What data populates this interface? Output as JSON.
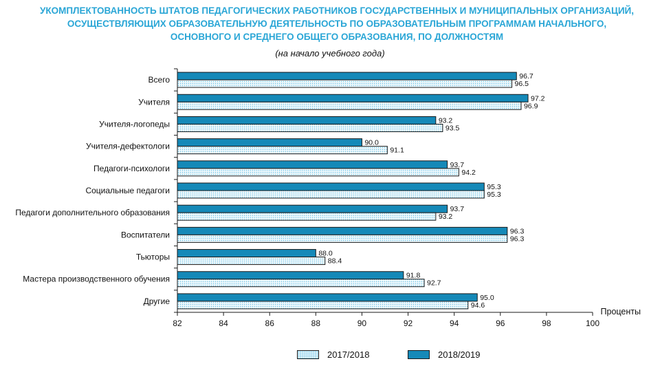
{
  "title_lines": [
    "УКОМПЛЕКТОВАННОСТЬ ШТАТОВ ПЕДАГОГИЧЕСКИХ РАБОТНИКОВ ГОСУДАРСТВЕННЫХ И МУНИЦИПАЛЬНЫХ ОРГАНИЗАЦИЙ,",
    "ОСУЩЕСТВЛЯЮЩИХ ОБРАЗОВАТЕЛЬНУЮ ДЕЯТЕЛЬНОСТЬ ПО ОБРАЗОВАТЕЛЬНЫМ ПРОГРАММАМ НАЧАЛЬНОГО,",
    "ОСНОВНОГО И СРЕДНЕГО ОБЩЕГО ОБРАЗОВАНИЯ, ПО ДОЛЖНОСТЯМ"
  ],
  "subtitle": "(на начало учебного года)",
  "colors": {
    "title": "#2aa6d6",
    "series_2018_2019": "#1589b8",
    "series_2017_2018_fill": "#eef8fc",
    "series_2017_2018_dots": "#6cc3e6"
  },
  "chart_data": {
    "type": "bar",
    "orientation": "horizontal",
    "title": "УКОМПЛЕКТОВАННОСТЬ ШТАТОВ ПЕДАГОГИЧЕСКИХ РАБОТНИКОВ ГОСУДАРСТВЕННЫХ И МУНИЦИПАЛЬНЫХ ОРГАНИЗАЦИЙ, ОСУЩЕСТВЛЯЮЩИХ ОБРАЗОВАТЕЛЬНУЮ ДЕЯТЕЛЬНОСТЬ ПО ОБРАЗОВАТЕЛЬНЫМ ПРОГРАММАМ НАЧАЛЬНОГО, ОСНОВНОГО И СРЕДНЕГО ОБЩЕГО ОБРАЗОВАНИЯ, ПО ДОЛЖНОСТЯМ",
    "subtitle": "(на начало учебного года)",
    "xlabel": "Проценты",
    "ylabel": "",
    "xlim": [
      82,
      100
    ],
    "xticks": [
      82,
      84,
      86,
      88,
      90,
      92,
      94,
      96,
      98,
      100
    ],
    "categories": [
      "Всего",
      "Учителя",
      "Учителя-логопеды",
      "Учителя-дефектологи",
      "Педагоги-психологи",
      "Социальные педагоги",
      "Педагоги дополнительного образования",
      "Воспитатели",
      "Тьюторы",
      "Мастера производственного обучения",
      "Другие"
    ],
    "series": [
      {
        "name": "2018/2019",
        "values": [
          96.7,
          97.2,
          93.2,
          90.0,
          93.7,
          95.3,
          93.7,
          96.3,
          88.0,
          91.8,
          95.0
        ]
      },
      {
        "name": "2017/2018",
        "values": [
          96.5,
          96.9,
          93.5,
          91.1,
          94.2,
          95.3,
          93.2,
          96.3,
          88.4,
          92.7,
          94.6
        ]
      }
    ],
    "legend": [
      "2017/2018",
      "2018/2019"
    ],
    "legend_position": "bottom"
  }
}
